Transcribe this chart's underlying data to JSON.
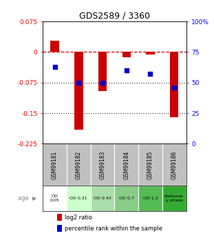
{
  "title": "GDS2589 / 3360",
  "samples": [
    "GSM99181",
    "GSM99182",
    "GSM99183",
    "GSM99184",
    "GSM99185",
    "GSM99186"
  ],
  "log2_ratio": [
    0.027,
    -0.19,
    -0.095,
    -0.012,
    -0.006,
    -0.16
  ],
  "percentile_rank": [
    63,
    50,
    50,
    60,
    57,
    46
  ],
  "ylim_left": [
    -0.225,
    0.075
  ],
  "ylim_right": [
    0,
    100
  ],
  "yticks_left": [
    0.075,
    0,
    -0.075,
    -0.15,
    -0.225
  ],
  "yticks_right": [
    100,
    75,
    50,
    25,
    0
  ],
  "hlines": [
    -0.075,
    -0.15
  ],
  "bar_color": "#cc0000",
  "dot_color": "#0000cc",
  "age_labels": [
    "OD\n0.05",
    "OD 0.21",
    "OD 0.43",
    "OD 0.7",
    "OD 1.2",
    "stationar\ny phase"
  ],
  "age_bg_colors": [
    "#ffffff",
    "#ccffcc",
    "#aaddaa",
    "#88cc88",
    "#55bb55",
    "#33aa33"
  ],
  "sample_bg_color": "#c0c0c0",
  "legend_bar_label": "log2 ratio",
  "legend_dot_label": "percentile rank within the sample",
  "zero_line_color": "#cc0000",
  "dotted_line_color": "#444444",
  "title_fontsize": 9
}
